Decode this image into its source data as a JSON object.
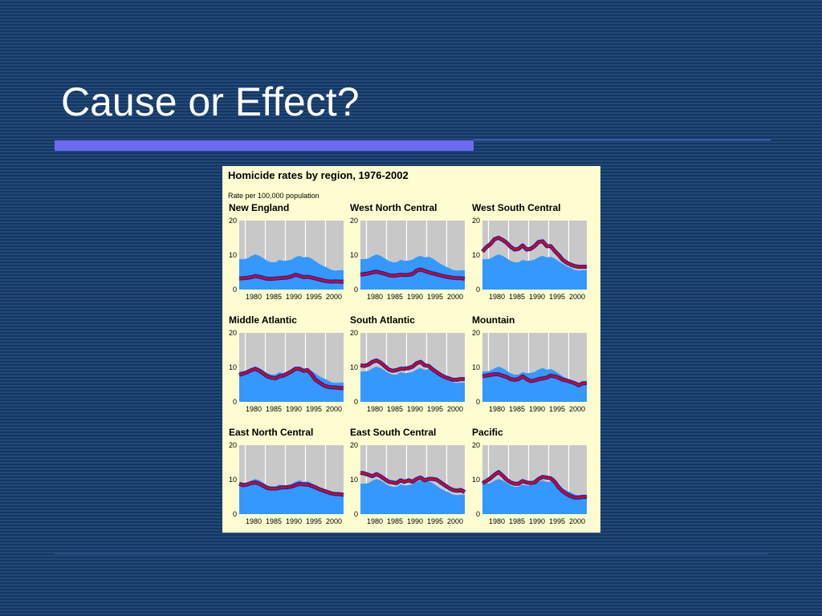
{
  "slide": {
    "title": "Cause or Effect?"
  },
  "colors": {
    "background": "#1a3f6b",
    "accent_rule": "#6b6bf2",
    "figure_background": "#fefdd2",
    "plot_background": "#c8c8c8",
    "area_fill": "#3399ff",
    "line_outline": "#2222aa",
    "line_main": "#ee0000"
  },
  "chart_data": {
    "title": "Homicide rates by region, 1976-2002",
    "subtitle": "Rate per 100,000 population",
    "type": "area+line small multiples",
    "grid": true,
    "x": [
      1976,
      1977,
      1978,
      1979,
      1980,
      1981,
      1982,
      1983,
      1984,
      1985,
      1986,
      1987,
      1988,
      1989,
      1990,
      1991,
      1992,
      1993,
      1994,
      1995,
      1996,
      1997,
      1998,
      1999,
      2000,
      2001,
      2002
    ],
    "xlim": [
      1976,
      2002
    ],
    "ylim": [
      0,
      20
    ],
    "x_ticks": [
      "1980",
      "1985",
      "1990",
      "1995",
      "2000"
    ],
    "y_ticks": [
      "0",
      "10",
      "20"
    ],
    "national_area": [
      8.8,
      8.8,
      9.0,
      9.7,
      10.2,
      9.8,
      9.1,
      8.3,
      7.9,
      7.9,
      8.6,
      8.3,
      8.4,
      8.7,
      9.4,
      9.8,
      9.3,
      9.5,
      9.0,
      8.2,
      7.4,
      6.8,
      6.3,
      5.7,
      5.5,
      5.6,
      5.6
    ],
    "panels": [
      {
        "name": "New England",
        "values": [
          3.2,
          3.3,
          3.4,
          3.6,
          3.9,
          3.7,
          3.4,
          3.1,
          3.1,
          3.2,
          3.3,
          3.4,
          3.5,
          3.8,
          4.3,
          4.0,
          3.6,
          3.7,
          3.5,
          3.2,
          2.9,
          2.6,
          2.4,
          2.3,
          2.4,
          2.3,
          2.3
        ]
      },
      {
        "name": "West North Central",
        "values": [
          4.3,
          4.5,
          4.7,
          5.0,
          5.2,
          4.9,
          4.6,
          4.2,
          4.0,
          4.1,
          4.3,
          4.2,
          4.3,
          4.5,
          5.5,
          5.8,
          5.4,
          5.0,
          4.7,
          4.4,
          4.1,
          3.8,
          3.6,
          3.4,
          3.3,
          3.3,
          3.1
        ]
      },
      {
        "name": "West South Central",
        "values": [
          11.0,
          12.3,
          13.2,
          14.6,
          15.0,
          14.4,
          13.6,
          12.4,
          11.6,
          11.8,
          12.8,
          11.6,
          11.8,
          12.6,
          13.8,
          14.0,
          12.6,
          12.6,
          11.2,
          10.0,
          8.6,
          7.8,
          7.2,
          6.8,
          6.6,
          6.6,
          6.6
        ]
      },
      {
        "name": "Middle Atlantic",
        "values": [
          7.8,
          8.2,
          8.6,
          9.2,
          9.6,
          9.0,
          8.2,
          7.4,
          7.0,
          6.8,
          7.4,
          7.6,
          8.2,
          8.8,
          9.6,
          9.6,
          9.0,
          9.2,
          8.0,
          6.4,
          5.6,
          4.8,
          4.4,
          4.2,
          4.2,
          4.0,
          4.0
        ]
      },
      {
        "name": "South Atlantic",
        "values": [
          10.6,
          10.4,
          10.8,
          11.6,
          12.0,
          11.4,
          10.4,
          9.4,
          9.0,
          9.2,
          9.6,
          9.6,
          9.8,
          10.2,
          11.2,
          11.6,
          10.6,
          10.4,
          9.4,
          8.6,
          7.8,
          7.2,
          6.8,
          6.4,
          6.4,
          6.6,
          6.6
        ]
      },
      {
        "name": "Mountain",
        "values": [
          7.4,
          7.6,
          7.8,
          8.0,
          8.0,
          7.6,
          7.2,
          6.6,
          6.4,
          6.6,
          7.4,
          6.6,
          6.0,
          6.2,
          6.6,
          6.8,
          7.0,
          7.6,
          7.4,
          7.0,
          6.4,
          6.2,
          5.8,
          5.4,
          4.8,
          5.4,
          5.4
        ]
      },
      {
        "name": "East North Central",
        "values": [
          8.8,
          8.4,
          8.6,
          9.0,
          9.2,
          8.8,
          8.2,
          7.6,
          7.4,
          7.4,
          7.6,
          7.8,
          7.8,
          8.0,
          8.4,
          8.8,
          8.6,
          8.6,
          8.2,
          7.8,
          7.2,
          6.8,
          6.4,
          6.0,
          5.8,
          5.8,
          5.6
        ]
      },
      {
        "name": "East South Central",
        "values": [
          12.0,
          11.8,
          11.4,
          11.0,
          11.6,
          11.0,
          10.2,
          9.4,
          9.2,
          9.0,
          9.8,
          9.4,
          9.8,
          9.4,
          10.2,
          10.6,
          9.8,
          10.2,
          10.2,
          10.0,
          9.2,
          8.4,
          7.6,
          7.0,
          6.8,
          7.0,
          6.4
        ]
      },
      {
        "name": "Pacific",
        "values": [
          9.0,
          9.6,
          10.4,
          11.4,
          12.2,
          11.2,
          10.0,
          9.2,
          8.8,
          8.8,
          9.6,
          9.2,
          9.0,
          9.2,
          10.2,
          10.8,
          10.6,
          10.4,
          9.4,
          7.8,
          6.6,
          5.8,
          5.2,
          4.8,
          4.8,
          5.0,
          5.0
        ]
      }
    ]
  }
}
